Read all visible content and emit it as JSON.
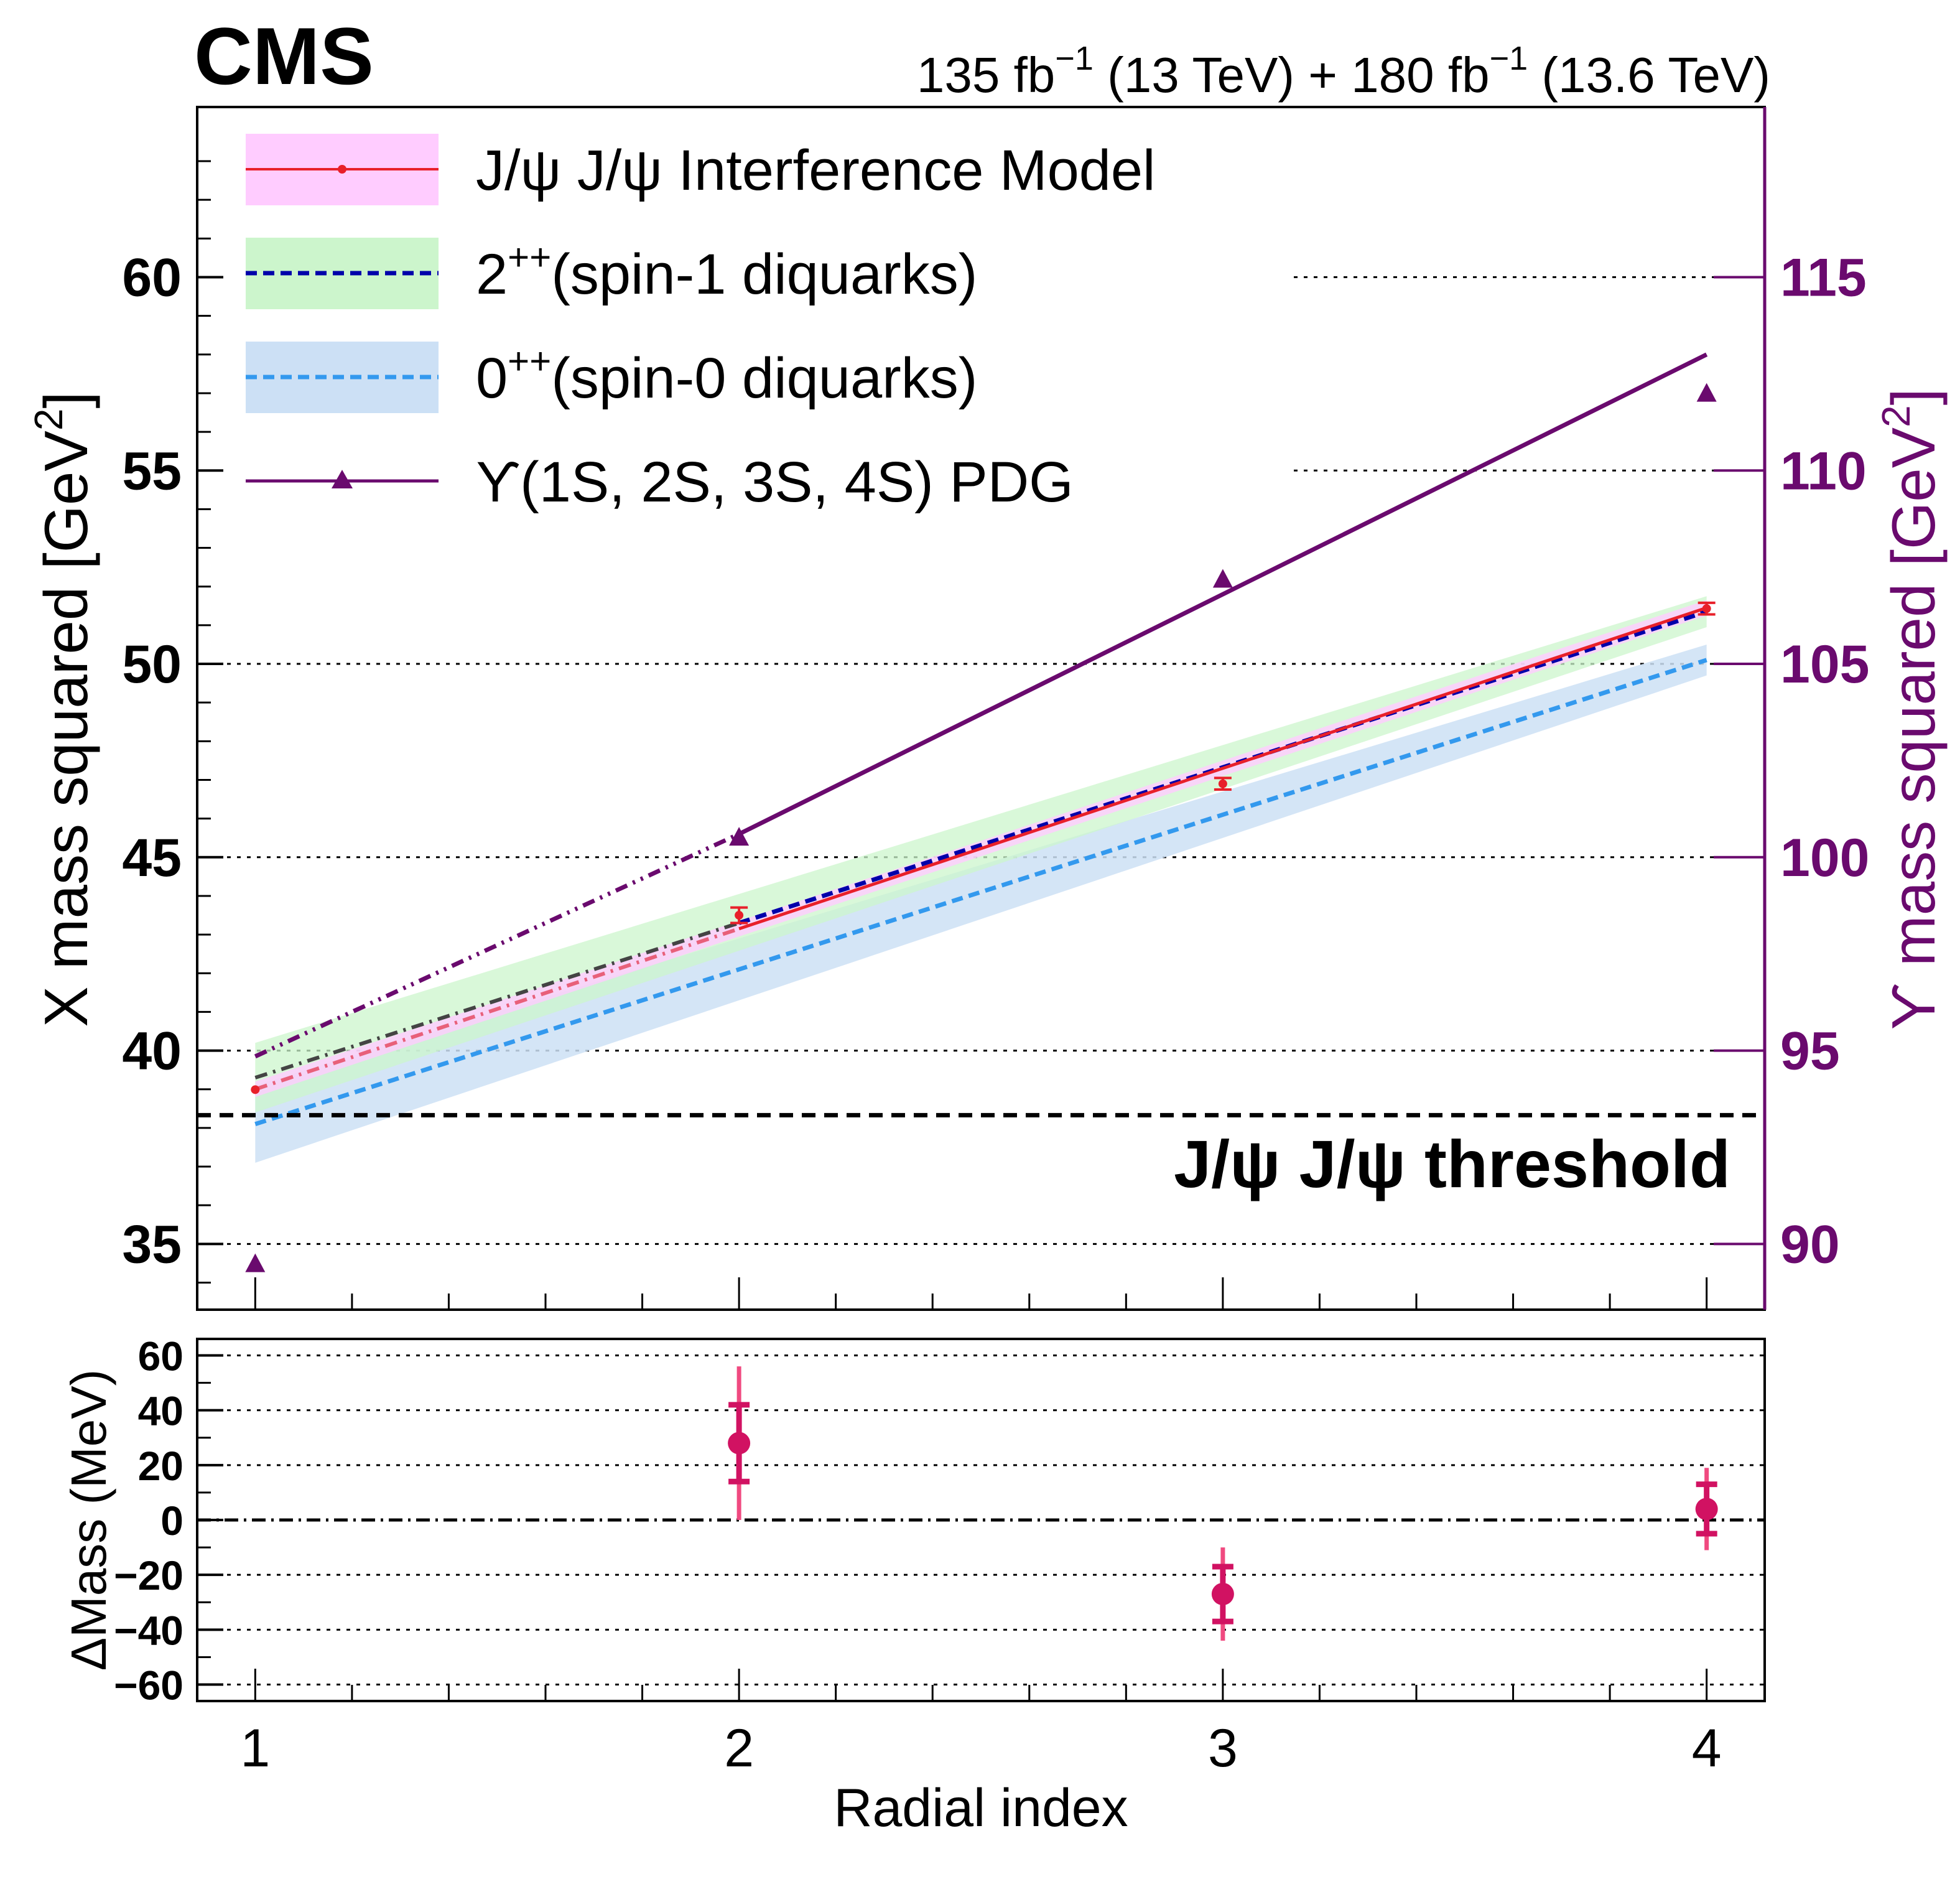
{
  "header": {
    "experiment": "CMS",
    "lumi_a": "135 fb",
    "lumi_a_exp": "−1",
    "lumi_a_energy": " (13 TeV) + ",
    "lumi_b": "180 fb",
    "lumi_b_exp": "−1",
    "lumi_b_energy": " (13.6 TeV)"
  },
  "legend": {
    "items": [
      {
        "label": "J/ψ J/ψ Interference Model",
        "style": "band-line-marker",
        "band_color": "#ffccff",
        "line_color": "#e8202a"
      },
      {
        "label": "(spin-1 diquarks)",
        "prefix": "2",
        "prefix_sup": "++",
        "style": "band-dashed",
        "band_color": "#ccf5cc",
        "line_color": "#0000aa"
      },
      {
        "label": "(spin-0 diquarks)",
        "prefix": "0",
        "prefix_sup": "++",
        "style": "band-dashed",
        "band_color": "#cce0f5",
        "line_color": "#3399ee"
      },
      {
        "label": "ϒ(1S, 2S, 3S, 4S) PDG",
        "style": "line-triangle",
        "line_color": "#6a0a6e"
      }
    ]
  },
  "threshold_label": "J/ψ J/ψ threshold",
  "chart_data": [
    {
      "type": "line",
      "panel": "upper",
      "x": [
        1,
        2,
        3,
        4
      ],
      "xlim": [
        0.88,
        4.12
      ],
      "xlabel": "Radial index",
      "ylabel": "X mass squared [GeV",
      "ylabel_sup": "2",
      "ylabel_close": "]",
      "ylim": [
        33.3,
        64.4
      ],
      "yticks": [
        35,
        40,
        45,
        50,
        55,
        60
      ],
      "y2label": "ϒ mass squared [GeV",
      "y2label_sup": "2",
      "y2label_close": "]",
      "y2ticks": [
        90,
        95,
        100,
        105,
        110,
        115
      ],
      "y2_offset": 55,
      "grid": "horizontal dotted",
      "threshold": 38.33,
      "series": [
        {
          "name": "J/ψ J/ψ Interference Model",
          "x": [
            1,
            2,
            3,
            4
          ],
          "values": [
            38.99,
            43.5,
            46.9,
            51.43
          ],
          "errors": [
            0.0,
            0.2,
            0.15,
            0.15
          ],
          "fit": [
            39.0,
            43.15,
            47.3,
            51.45
          ],
          "band_halfwidth": 0.2,
          "color": "#e8202a",
          "band_color": "#ffccff"
        },
        {
          "name": "2++ (spin-1 diquarks)",
          "fit": [
            39.3,
            43.3,
            47.35,
            51.35
          ],
          "band_halfwidth_start": 0.9,
          "band_halfwidth_end": 0.4,
          "color": "#0000aa",
          "band_color": "#ccf5cc"
        },
        {
          "name": "0++ (spin-0 diquarks)",
          "fit": [
            38.1,
            42.0,
            46.0,
            50.1
          ],
          "band_halfwidth_start": 1.0,
          "band_halfwidth_end": 0.4,
          "color": "#3399ee",
          "band_color": "#cce0f5"
        },
        {
          "name": "ϒ(1S, 2S, 3S, 4S) PDG",
          "y2_values": [
            89.48,
            100.51,
            107.18,
            111.99
          ],
          "y2_fit": [
            94.85,
            100.6,
            106.75,
            113.0
          ],
          "color": "#6a0a6e"
        }
      ]
    },
    {
      "type": "scatter",
      "panel": "lower",
      "x": [
        2,
        3,
        4
      ],
      "xlim": [
        0.88,
        4.12
      ],
      "xticks": [
        1,
        2,
        3,
        4
      ],
      "xlabel": "Radial index",
      "ylabel": "ΔMass (MeV)",
      "ylim": [
        -66,
        66
      ],
      "yticks": [
        -60,
        -40,
        -20,
        0,
        20,
        40,
        60
      ],
      "values": [
        28,
        -27,
        4
      ],
      "stat_err": [
        14,
        10,
        9
      ],
      "total_err": [
        28,
        17,
        15
      ],
      "color": "#d11262",
      "err_color": "#f04a80",
      "reference_line": 0
    }
  ]
}
